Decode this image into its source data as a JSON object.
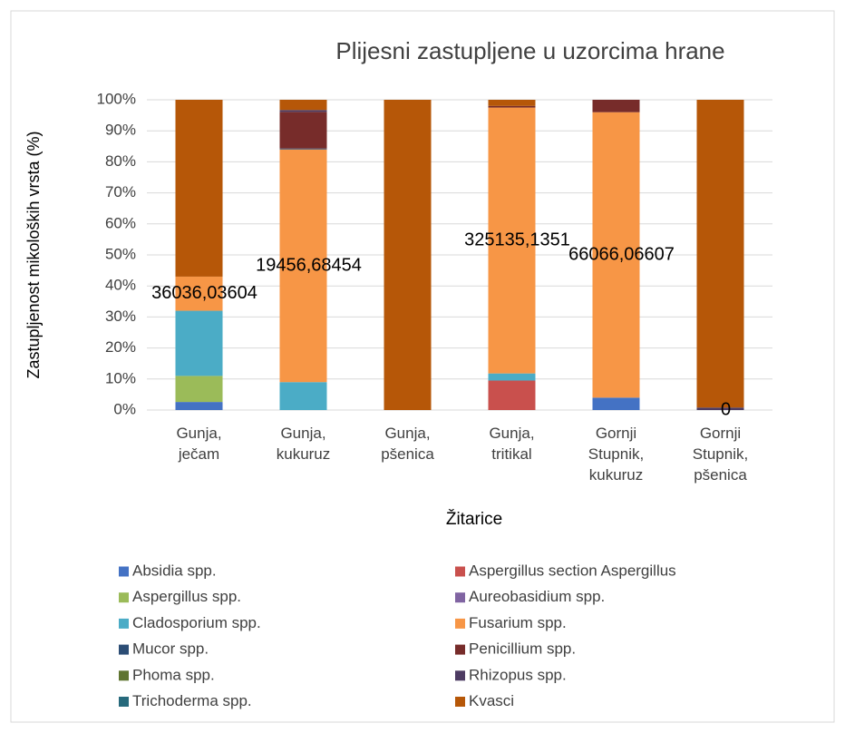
{
  "chart_data": {
    "type": "stacked_bar_percent",
    "title": "Plijesni zastupljene u uzorcima hrane",
    "x_label": "Žitarice",
    "y_label": "Zastupljenost mikoloških vrsta (%)",
    "categories": [
      "Gunja, ječam",
      "Gunja, kukuruz",
      "Gunja, pšenica",
      "Gunja, tritikal",
      "Gornji Stupnik, kukuruz",
      "Gornji Stupnik, pšenica"
    ],
    "ylim": [
      0,
      100
    ],
    "yticks": [
      {
        "value": 0,
        "label": "0%"
      },
      {
        "value": 10,
        "label": "10%"
      },
      {
        "value": 20,
        "label": "20%"
      },
      {
        "value": 30,
        "label": "30%"
      },
      {
        "value": 40,
        "label": "40%"
      },
      {
        "value": 50,
        "label": "50%"
      },
      {
        "value": 60,
        "label": "60%"
      },
      {
        "value": 70,
        "label": "70%"
      },
      {
        "value": 80,
        "label": "80%"
      },
      {
        "value": 90,
        "label": "90%"
      },
      {
        "value": 100,
        "label": "100%"
      }
    ],
    "grid": true,
    "legend": "bottom",
    "series": [
      {
        "name": "Absidia spp.",
        "color": "#4472c4",
        "values": [
          2.6,
          0,
          0,
          0,
          4,
          0
        ]
      },
      {
        "name": "Aspergillus section Aspergillus",
        "color": "#c9504d",
        "values": [
          0,
          0,
          0,
          9.5,
          0,
          0
        ]
      },
      {
        "name": "Aspergillus spp.",
        "color": "#9bbb59",
        "values": [
          8.4,
          0,
          0,
          0,
          0,
          0
        ]
      },
      {
        "name": "Aureobasidium spp.",
        "color": "#8064a2",
        "values": [
          0,
          0,
          0,
          0,
          0,
          0
        ]
      },
      {
        "name": "Cladosporium spp.",
        "color": "#4bacc6",
        "values": [
          21,
          9,
          0,
          2.3,
          0,
          0
        ]
      },
      {
        "name": "Fusarium spp.",
        "color": "#f79646",
        "values": [
          11,
          75,
          0,
          85.7,
          92,
          0
        ]
      },
      {
        "name": "Mucor spp.",
        "color": "#2c4d75",
        "values": [
          0,
          0.3,
          0,
          0,
          0,
          0
        ]
      },
      {
        "name": "Penicillium spp.",
        "color": "#772c2a",
        "values": [
          0,
          11.8,
          0,
          0.5,
          4,
          0
        ]
      },
      {
        "name": "Phoma spp.",
        "color": "#5f7530",
        "values": [
          0,
          0,
          0,
          0,
          0,
          0
        ]
      },
      {
        "name": "Rhizopus spp.",
        "color": "#4d3b62",
        "values": [
          0,
          0.6,
          0,
          0,
          0,
          0.8
        ]
      },
      {
        "name": "Trichoderma spp.",
        "color": "#276a7c",
        "values": [
          0,
          0,
          0,
          0,
          0,
          0
        ]
      },
      {
        "name": "Kvasci",
        "color": "#b65708",
        "values": [
          57,
          3.3,
          100,
          2,
          0,
          99.2
        ]
      }
    ],
    "annotations": [
      "36036,03604",
      "19456,68454",
      null,
      "325135,1351",
      "66066,06607",
      "0"
    ]
  }
}
